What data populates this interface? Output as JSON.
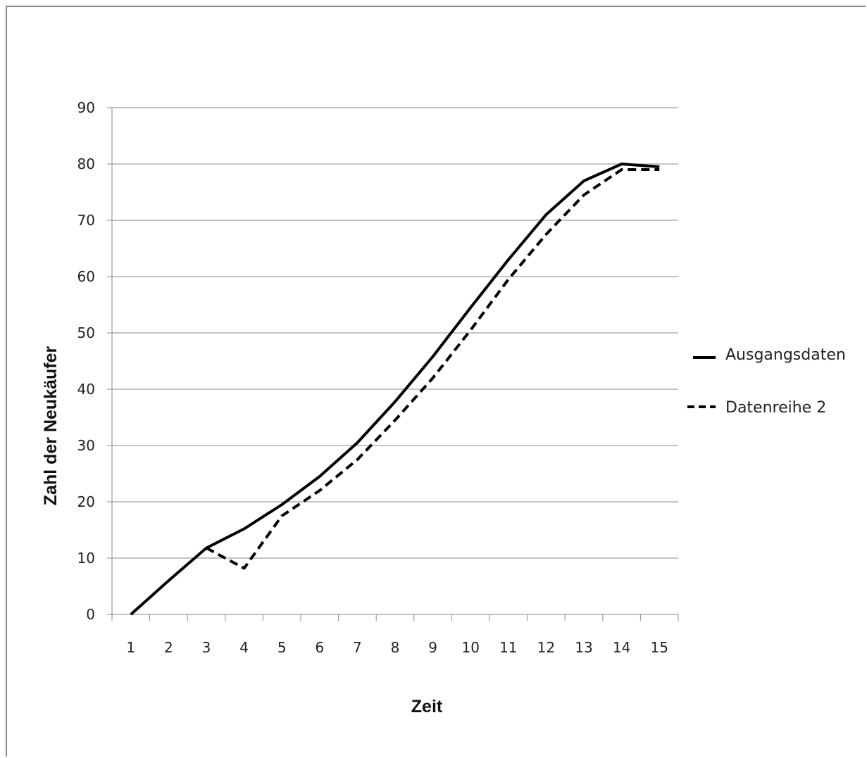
{
  "chart_data": {
    "type": "line",
    "title": "",
    "xlabel": "Zeit",
    "ylabel": "Zahl der Neukäufer",
    "categories": [
      "1",
      "2",
      "3",
      "4",
      "5",
      "6",
      "7",
      "8",
      "9",
      "10",
      "11",
      "12",
      "13",
      "14",
      "15"
    ],
    "yticks": [
      "0",
      "10",
      "20",
      "30",
      "40",
      "50",
      "60",
      "70",
      "80",
      "90"
    ],
    "ylim": [
      0,
      90
    ],
    "grid": "horizontal",
    "legend_position": "right",
    "series": [
      {
        "name": "Ausgangsdaten",
        "style": "solid",
        "color": "#000000",
        "values": [
          0,
          6,
          11.8,
          15.2,
          19.5,
          24.5,
          30.5,
          37.8,
          45.8,
          54.5,
          63,
          71,
          77,
          80,
          79.5
        ]
      },
      {
        "name": "Datenreihe 2",
        "style": "dashed",
        "color": "#000000",
        "values": [
          null,
          null,
          11.8,
          8.2,
          17.5,
          22,
          27.5,
          34.5,
          42,
          50.5,
          59.5,
          67.5,
          74.5,
          79,
          79
        ]
      }
    ]
  }
}
